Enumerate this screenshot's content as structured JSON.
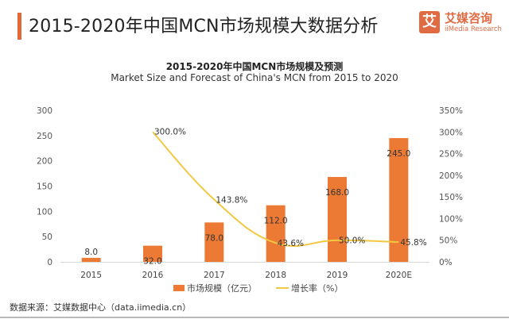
{
  "header": {
    "title": "2015-2020年中国MCN市场规模大数据分析",
    "logo": {
      "mark": "艾",
      "name_cn": "艾媒咨询",
      "name_en": "iiMedia Research"
    }
  },
  "chart_data": {
    "type": "bar+line",
    "title": "2015-2020年中国MCN市场规模及预测",
    "subtitle": "Market Size and Forecast of China's MCN from 2015 to 2020",
    "categories": [
      "2015",
      "2016",
      "2017",
      "2018",
      "2019",
      "2020E"
    ],
    "series": [
      {
        "name": "市场规模（亿元）",
        "type": "bar",
        "axis": "left",
        "color": "#ec7a35",
        "values": [
          8.0,
          32.0,
          78.0,
          112.0,
          168.0,
          245.0
        ],
        "labels": [
          "8.0",
          "32.0",
          "78.0",
          "112.0",
          "168.0",
          "245.0"
        ]
      },
      {
        "name": "增长率（%）",
        "type": "line",
        "axis": "right",
        "color": "#f2c842",
        "values": [
          null,
          300.0,
          143.8,
          43.6,
          50.0,
          45.8
        ],
        "labels": [
          "",
          "300.0%",
          "143.8%",
          "43.6%",
          "50.0%",
          "45.8%"
        ]
      }
    ],
    "y_left": {
      "ylim": [
        0,
        300
      ],
      "ticks": [
        "0",
        "50",
        "100",
        "150",
        "200",
        "250",
        "300"
      ],
      "tick_values": [
        0,
        50,
        100,
        150,
        200,
        250,
        300
      ]
    },
    "y_right": {
      "ylim": [
        0,
        350
      ],
      "ticks": [
        "0%",
        "50%",
        "100%",
        "150%",
        "200%",
        "250%",
        "300%",
        "350%"
      ],
      "tick_values": [
        0,
        50,
        100,
        150,
        200,
        250,
        300,
        350
      ]
    },
    "grid": false,
    "legend_position": "bottom-center"
  },
  "legend": {
    "bar_label": "市场规模（亿元）",
    "line_label": "增长率（%）"
  },
  "footer": {
    "source": "数据来源：艾媒数据中心（data.iimedia.cn）"
  }
}
